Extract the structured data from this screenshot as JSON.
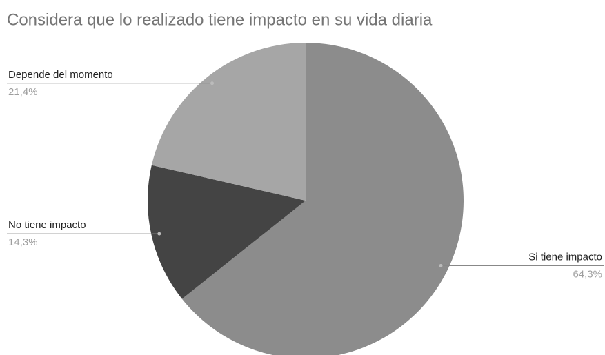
{
  "chart_data": {
    "type": "pie",
    "title": "Considera que lo realizado tiene impacto en su vida diaria",
    "categories": [
      "Si tiene impacto",
      "No tiene impacto",
      "Depende del momento"
    ],
    "values": [
      64.3,
      14.3,
      21.4
    ],
    "value_labels": [
      "64,3%",
      "14,3%",
      "21,4%"
    ],
    "colors": [
      "#8c8c8c",
      "#444444",
      "#a6a6a6"
    ]
  }
}
